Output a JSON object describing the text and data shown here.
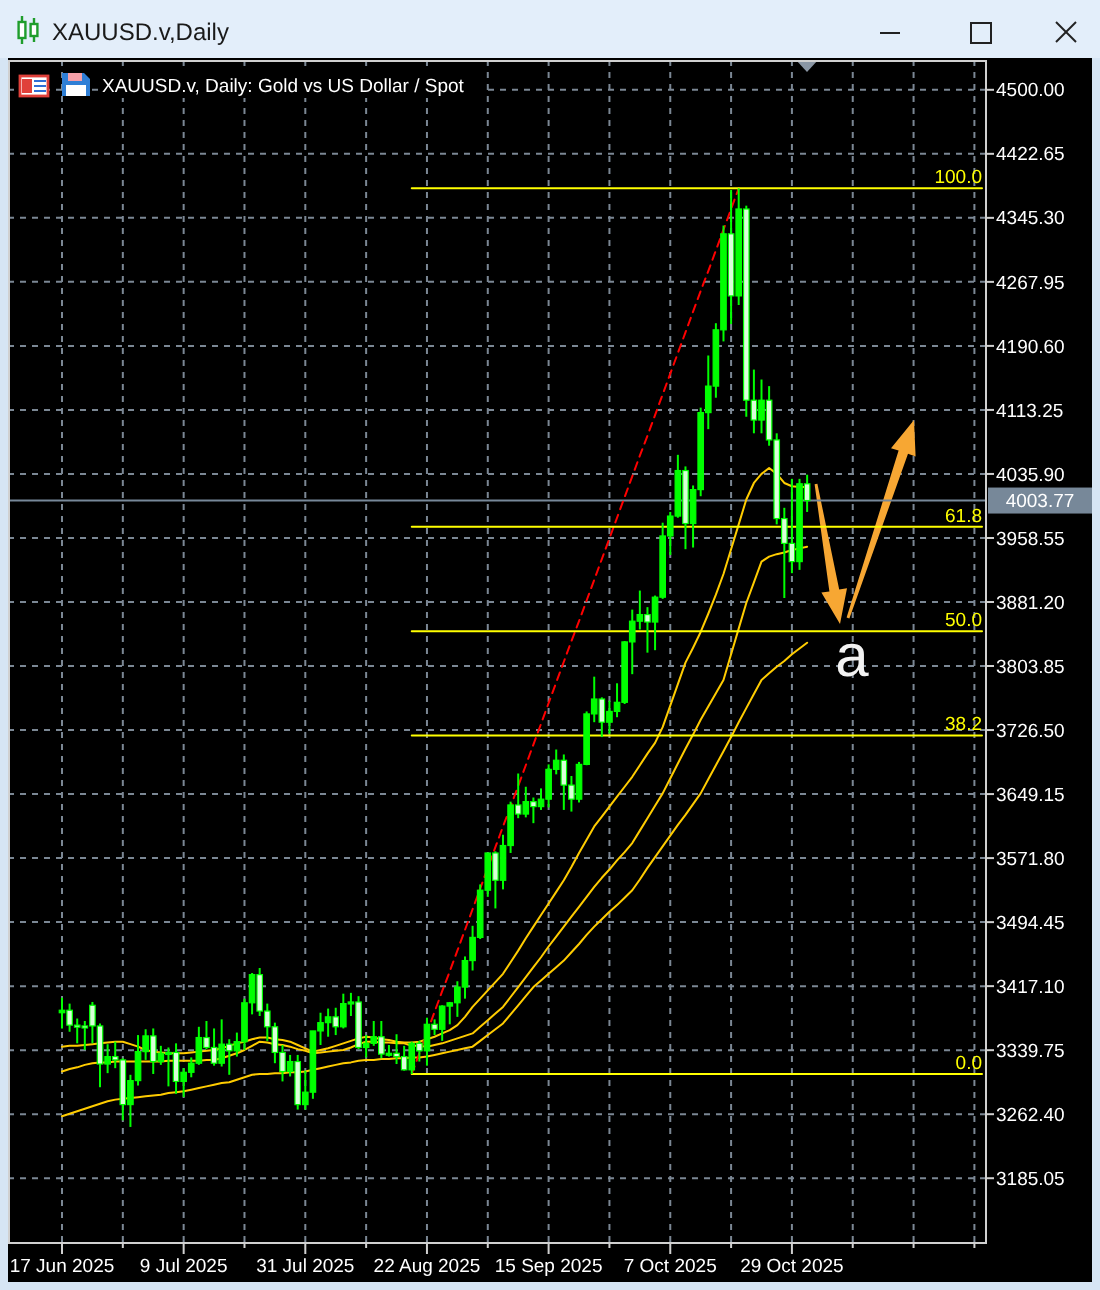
{
  "chart_data": {
    "type": "candlestick",
    "title": "XAUUSD.v,Daily",
    "subtitle": "XAUUSD.v, Daily: Gold vs US Dollar / Spot",
    "color": "#00ff00",
    "categories": [
      "17 Jun 2025",
      null,
      null,
      null,
      null,
      null,
      null,
      null,
      null,
      null,
      null,
      null,
      null,
      null,
      null,
      null,
      "9 Jul 2025",
      null,
      null,
      null,
      null,
      null,
      null,
      null,
      null,
      null,
      null,
      null,
      null,
      null,
      null,
      null,
      "31 Jul 2025",
      null,
      null,
      null,
      null,
      null,
      null,
      null,
      null,
      null,
      null,
      null,
      null,
      null,
      null,
      null,
      "22 Aug 2025",
      null,
      null,
      null,
      null,
      null,
      null,
      null,
      null,
      null,
      null,
      null,
      null,
      null,
      null,
      null,
      "15 Sep 2025",
      null,
      null,
      null,
      null,
      null,
      null,
      null,
      null,
      null,
      null,
      null,
      null,
      null,
      null,
      null,
      "7 Oct 2025",
      null,
      null,
      null,
      null,
      null,
      null,
      null,
      null,
      null,
      null,
      null,
      null,
      null,
      null,
      null,
      "29 Oct 2025",
      null,
      null,
      null,
      null,
      null,
      null,
      null,
      null,
      null,
      null,
      null,
      null,
      null,
      null,
      null,
      null,
      null,
      null,
      null,
      null,
      null,
      null,
      null,
      null,
      null
    ],
    "ohlc": [
      [
        3385,
        3403,
        3366,
        3388
      ],
      [
        3388,
        3396,
        3362,
        3370
      ],
      [
        3370,
        3378,
        3348,
        3369
      ],
      [
        3369,
        3375,
        3340,
        3368
      ],
      [
        3394,
        3398,
        3348,
        3369
      ],
      [
        3369,
        3372,
        3295,
        3323
      ],
      [
        3323,
        3347,
        3312,
        3332
      ],
      [
        3332,
        3350,
        3318,
        3328
      ],
      [
        3328,
        3330,
        3255,
        3274
      ],
      [
        3274,
        3310,
        3247,
        3303
      ],
      [
        3303,
        3358,
        3297,
        3338
      ],
      [
        3338,
        3365,
        3328,
        3357
      ],
      [
        3357,
        3366,
        3311,
        3326
      ],
      [
        3326,
        3345,
        3322,
        3336
      ],
      [
        3336,
        3343,
        3296,
        3337
      ],
      [
        3337,
        3348,
        3287,
        3302
      ],
      [
        3302,
        3318,
        3283,
        3313
      ],
      [
        3313,
        3331,
        3307,
        3324
      ],
      [
        3324,
        3368,
        3322,
        3355
      ],
      [
        3355,
        3375,
        3341,
        3343
      ],
      [
        3343,
        3366,
        3321,
        3324
      ],
      [
        3324,
        3377,
        3320,
        3347
      ],
      [
        3347,
        3353,
        3310,
        3339
      ],
      [
        3339,
        3361,
        3332,
        3350
      ],
      [
        3350,
        3402,
        3340,
        3397
      ],
      [
        3397,
        3433,
        3383,
        3431
      ],
      [
        3431,
        3439,
        3381,
        3387
      ],
      [
        3387,
        3396,
        3351,
        3368
      ],
      [
        3368,
        3373,
        3324,
        3337
      ],
      [
        3337,
        3346,
        3302,
        3314
      ],
      [
        3314,
        3334,
        3308,
        3326
      ],
      [
        3326,
        3334,
        3268,
        3274
      ],
      [
        3274,
        3315,
        3268,
        3289
      ],
      [
        3289,
        3363,
        3281,
        3363
      ],
      [
        3363,
        3385,
        3346,
        3373
      ],
      [
        3373,
        3390,
        3356,
        3380
      ],
      [
        3380,
        3391,
        3358,
        3368
      ],
      [
        3368,
        3408,
        3366,
        3396
      ],
      [
        3396,
        3409,
        3381,
        3398
      ],
      [
        3398,
        3405,
        3341,
        3343
      ],
      [
        3343,
        3358,
        3331,
        3348
      ],
      [
        3348,
        3375,
        3345,
        3356
      ],
      [
        3356,
        3375,
        3330,
        3335
      ],
      [
        3335,
        3346,
        3332,
        3336
      ],
      [
        3336,
        3359,
        3323,
        3332
      ],
      [
        3332,
        3345,
        3315,
        3316
      ],
      [
        3316,
        3350,
        3311,
        3348
      ],
      [
        3348,
        3351,
        3326,
        3339
      ],
      [
        3339,
        3379,
        3321,
        3371
      ],
      [
        3371,
        3377,
        3358,
        3365
      ],
      [
        3365,
        3394,
        3351,
        3393
      ],
      [
        3393,
        3398,
        3371,
        3397
      ],
      [
        3397,
        3423,
        3380,
        3416
      ],
      [
        3416,
        3453,
        3402,
        3448
      ],
      [
        3448,
        3490,
        3436,
        3476
      ],
      [
        3476,
        3540,
        3474,
        3533
      ],
      [
        3533,
        3578,
        3525,
        3578
      ],
      [
        3578,
        3580,
        3511,
        3545
      ],
      [
        3545,
        3600,
        3534,
        3587
      ],
      [
        3587,
        3640,
        3578,
        3636
      ],
      [
        3636,
        3674,
        3620,
        3625
      ],
      [
        3625,
        3658,
        3621,
        3640
      ],
      [
        3640,
        3645,
        3614,
        3634
      ],
      [
        3634,
        3656,
        3630,
        3643
      ],
      [
        3643,
        3685,
        3633,
        3679
      ],
      [
        3679,
        3703,
        3673,
        3690
      ],
      [
        3690,
        3697,
        3630,
        3660
      ],
      [
        3660,
        3671,
        3628,
        3643
      ],
      [
        3643,
        3688,
        3639,
        3685
      ],
      [
        3685,
        3749,
        3684,
        3746
      ],
      [
        3746,
        3791,
        3736,
        3764
      ],
      [
        3764,
        3766,
        3718,
        3736
      ],
      [
        3736,
        3762,
        3722,
        3749
      ],
      [
        3749,
        3783,
        3742,
        3760
      ],
      [
        3760,
        3834,
        3758,
        3833
      ],
      [
        3833,
        3872,
        3794,
        3858
      ],
      [
        3858,
        3895,
        3848,
        3866
      ],
      [
        3866,
        3875,
        3820,
        3857
      ],
      [
        3857,
        3889,
        3823,
        3887
      ],
      [
        3887,
        3977,
        3885,
        3961
      ],
      [
        3961,
        3990,
        3938,
        3985
      ],
      [
        3985,
        4059,
        3983,
        4040
      ],
      [
        4040,
        4045,
        3945,
        3976
      ],
      [
        3976,
        4022,
        3947,
        4017
      ],
      [
        4017,
        4116,
        4009,
        4110
      ],
      [
        4110,
        4179,
        4090,
        4142
      ],
      [
        4142,
        4218,
        4128,
        4210
      ],
      [
        4210,
        4336,
        4196,
        4326
      ],
      [
        4326,
        4379,
        4217,
        4251
      ],
      [
        4251,
        4381,
        4240,
        4356
      ],
      [
        4356,
        4360,
        4105,
        4125
      ],
      [
        4125,
        4162,
        4085,
        4101
      ],
      [
        4101,
        4150,
        4085,
        4125
      ],
      [
        4125,
        4142,
        4070,
        4077
      ],
      [
        4077,
        4085,
        3975,
        3982
      ],
      [
        3982,
        3995,
        3886,
        3952
      ],
      [
        3952,
        4030,
        3916,
        3930
      ],
      [
        3930,
        4030,
        3920,
        4024
      ],
      [
        4024,
        4035,
        3990,
        4003.77
      ],
      null,
      null,
      null,
      null,
      null,
      null,
      null,
      null,
      null,
      null,
      null,
      null,
      null,
      null,
      null,
      null,
      null,
      null,
      null,
      null,
      null,
      null,
      null
    ],
    "series": [
      {
        "type": "line",
        "color": "#ffcc00",
        "values": [
          3344,
          3345,
          3345,
          3346,
          3347,
          3348,
          3349,
          3350,
          3350,
          3347,
          3344,
          3340,
          3338,
          3337,
          3336,
          3336,
          3336,
          3337,
          3338,
          3339,
          3340,
          3342,
          3345,
          3348,
          3350,
          3353,
          3355,
          3355,
          3353,
          3352,
          3350,
          3346,
          3342,
          3338,
          3340,
          3342,
          3345,
          3348,
          3351,
          3354,
          3356,
          3355,
          3353,
          3352,
          3350,
          3349,
          3349,
          3350,
          3353,
          3356,
          3360,
          3364,
          3370,
          3380,
          3392,
          3402,
          3412,
          3422,
          3432,
          3446,
          3460,
          3475,
          3489,
          3503,
          3517,
          3531,
          3545,
          3561,
          3578,
          3594,
          3610,
          3622,
          3634,
          3646,
          3658,
          3670,
          3684,
          3698,
          3711,
          3730,
          3756,
          3782,
          3808,
          3826,
          3845,
          3867,
          3890,
          3915,
          3945,
          3975,
          4005,
          4025,
          4036,
          4043,
          4036,
          4025,
          4021,
          4020,
          4020,
          null,
          null,
          null,
          null,
          null,
          null,
          null,
          null,
          null,
          null,
          null,
          null,
          null,
          null,
          null,
          null,
          null,
          null,
          null,
          null,
          null,
          null,
          null
        ]
      },
      {
        "type": "line",
        "color": "#ffcc00",
        "values": [
          3314,
          3317,
          3319,
          3322,
          3324,
          3325,
          3325,
          3326,
          3326,
          3326,
          3326,
          3326,
          3326,
          3326,
          3327,
          3327,
          3327,
          3327,
          3327,
          3328,
          3328,
          3330,
          3333,
          3336,
          3340,
          3345,
          3350,
          3349,
          3347,
          3346,
          3344,
          3341,
          3339,
          3336,
          3337,
          3338,
          3339,
          3340,
          3343,
          3347,
          3350,
          3350,
          3349,
          3349,
          3348,
          3348,
          3345,
          3345,
          3344,
          3346,
          3348,
          3351,
          3354,
          3357,
          3360,
          3368,
          3376,
          3384,
          3392,
          3404,
          3416,
          3428,
          3440,
          3452,
          3465,
          3477,
          3489,
          3501,
          3513,
          3525,
          3537,
          3548,
          3558,
          3569,
          3579,
          3590,
          3605,
          3620,
          3635,
          3650,
          3668,
          3686,
          3704,
          3721,
          3739,
          3755,
          3771,
          3787,
          3818,
          3849,
          3880,
          3905,
          3930,
          3936,
          3939,
          3941,
          3944,
          3946,
          3948,
          null,
          null,
          null,
          null,
          null,
          null,
          null,
          null,
          null,
          null,
          null,
          null,
          null,
          null,
          null,
          null,
          null,
          null,
          null,
          null,
          null,
          null,
          null
        ]
      },
      {
        "type": "line",
        "color": "#ffcc00",
        "values": [
          3260,
          3263,
          3266,
          3269,
          3272,
          3275,
          3278,
          3280,
          3281,
          3282,
          3283,
          3284,
          3285,
          3286,
          3288,
          3289,
          3290,
          3292,
          3294,
          3296,
          3298,
          3300,
          3301,
          3304,
          3307,
          3310,
          3311,
          3311,
          3312,
          3312,
          3313,
          3313,
          3314,
          3316,
          3318,
          3320,
          3322,
          3324,
          3325,
          3327,
          3328,
          3328,
          3329,
          3329,
          3330,
          3330,
          3331,
          3331,
          3332,
          3334,
          3336,
          3338,
          3340,
          3342,
          3344,
          3351,
          3358,
          3365,
          3372,
          3383,
          3394,
          3405,
          3416,
          3424,
          3432,
          3440,
          3448,
          3458,
          3468,
          3479,
          3489,
          3498,
          3507,
          3515,
          3524,
          3533,
          3546,
          3560,
          3573,
          3586,
          3599,
          3612,
          3624,
          3637,
          3650,
          3667,
          3684,
          3701,
          3718,
          3736,
          3753,
          3770,
          3787,
          3795,
          3803,
          3810,
          3818,
          3825,
          3832,
          null,
          null,
          null,
          null,
          null,
          null,
          null,
          null,
          null,
          null,
          null,
          null,
          null,
          null,
          null,
          null,
          null,
          null,
          null,
          null,
          null,
          null,
          null
        ]
      },
      {
        "type": "line",
        "color": "#ff0000",
        "line_style": "dashed",
        "values": [
          null,
          null,
          null,
          null,
          null,
          null,
          null,
          null,
          null,
          null,
          null,
          null,
          null,
          null,
          null,
          null,
          null,
          null,
          null,
          null,
          null,
          null,
          null,
          null,
          null,
          null,
          null,
          null,
          null,
          null,
          null,
          null,
          null,
          null,
          null,
          null,
          null,
          null,
          null,
          null,
          null,
          null,
          null,
          null,
          null,
          null,
          3311,
          3336,
          3361,
          3386,
          3411,
          3435,
          3460,
          3485,
          3510,
          3535,
          3560,
          3585,
          3610,
          3634,
          3659,
          3684,
          3709,
          3734,
          3759,
          3784,
          3809,
          3834,
          3858,
          3883,
          3908,
          3933,
          3958,
          3983,
          4008,
          4033,
          4058,
          4082,
          4107,
          4132,
          4157,
          4182,
          4207,
          4232,
          4257,
          4281,
          4306,
          4331,
          4356,
          4381,
          null,
          null,
          null,
          null,
          null,
          null,
          null,
          null,
          null,
          null,
          null,
          null,
          null,
          null,
          null,
          null,
          null,
          null,
          null,
          null,
          null,
          null,
          null,
          null,
          null,
          null,
          null,
          null,
          null,
          null,
          null,
          null
        ]
      },
      {
        "type": "line",
        "name": "100.0",
        "color": "#ffff00",
        "values": [
          null,
          null,
          null,
          null,
          null,
          null,
          null,
          null,
          null,
          null,
          null,
          null,
          null,
          null,
          null,
          null,
          null,
          null,
          null,
          null,
          null,
          null,
          null,
          null,
          null,
          null,
          null,
          null,
          null,
          null,
          null,
          null,
          null,
          null,
          null,
          null,
          null,
          null,
          null,
          null,
          null,
          null,
          null,
          null,
          null,
          null,
          4381,
          4381,
          4381,
          4381,
          4381,
          4381,
          4381,
          4381,
          4381,
          4381,
          4381,
          4381,
          4381,
          4381,
          4381,
          4381,
          4381,
          4381,
          4381,
          4381,
          4381,
          4381,
          4381,
          4381,
          4381,
          4381,
          4381,
          4381,
          4381,
          4381,
          4381,
          4381,
          4381,
          4381,
          4381,
          4381,
          4381,
          4381,
          4381,
          4381,
          4381,
          4381,
          4381,
          4381,
          4381,
          4381,
          4381,
          4381,
          4381,
          4381,
          4381,
          4381,
          4381,
          4381,
          4381,
          4381,
          4381,
          4381,
          4381,
          4381,
          4381,
          4381,
          4381,
          4381,
          4381,
          4381,
          4381,
          4381,
          4381,
          4381,
          4381,
          4381,
          4381,
          4381,
          4381,
          4381
        ]
      },
      {
        "type": "line",
        "name": "61.8",
        "color": "#ffff00",
        "values": [
          null,
          null,
          null,
          null,
          null,
          null,
          null,
          null,
          null,
          null,
          null,
          null,
          null,
          null,
          null,
          null,
          null,
          null,
          null,
          null,
          null,
          null,
          null,
          null,
          null,
          null,
          null,
          null,
          null,
          null,
          null,
          null,
          null,
          null,
          null,
          null,
          null,
          null,
          null,
          null,
          null,
          null,
          null,
          null,
          null,
          null,
          3972,
          3972,
          3972,
          3972,
          3972,
          3972,
          3972,
          3972,
          3972,
          3972,
          3972,
          3972,
          3972,
          3972,
          3972,
          3972,
          3972,
          3972,
          3972,
          3972,
          3972,
          3972,
          3972,
          3972,
          3972,
          3972,
          3972,
          3972,
          3972,
          3972,
          3972,
          3972,
          3972,
          3972,
          3972,
          3972,
          3972,
          3972,
          3972,
          3972,
          3972,
          3972,
          3972,
          3972,
          3972,
          3972,
          3972,
          3972,
          3972,
          3972,
          3972,
          3972,
          3972,
          3972,
          3972,
          3972,
          3972,
          3972,
          3972,
          3972,
          3972,
          3972,
          3972,
          3972,
          3972,
          3972,
          3972,
          3972,
          3972,
          3972,
          3972,
          3972,
          3972,
          3972,
          3972,
          3972
        ]
      },
      {
        "type": "line",
        "name": "50.0",
        "color": "#ffff00",
        "values": [
          null,
          null,
          null,
          null,
          null,
          null,
          null,
          null,
          null,
          null,
          null,
          null,
          null,
          null,
          null,
          null,
          null,
          null,
          null,
          null,
          null,
          null,
          null,
          null,
          null,
          null,
          null,
          null,
          null,
          null,
          null,
          null,
          null,
          null,
          null,
          null,
          null,
          null,
          null,
          null,
          null,
          null,
          null,
          null,
          null,
          null,
          3846,
          3846,
          3846,
          3846,
          3846,
          3846,
          3846,
          3846,
          3846,
          3846,
          3846,
          3846,
          3846,
          3846,
          3846,
          3846,
          3846,
          3846,
          3846,
          3846,
          3846,
          3846,
          3846,
          3846,
          3846,
          3846,
          3846,
          3846,
          3846,
          3846,
          3846,
          3846,
          3846,
          3846,
          3846,
          3846,
          3846,
          3846,
          3846,
          3846,
          3846,
          3846,
          3846,
          3846,
          3846,
          3846,
          3846,
          3846,
          3846,
          3846,
          3846,
          3846,
          3846,
          3846,
          3846,
          3846,
          3846,
          3846,
          3846,
          3846,
          3846,
          3846,
          3846,
          3846,
          3846,
          3846,
          3846,
          3846,
          3846,
          3846,
          3846,
          3846,
          3846,
          3846,
          3846,
          3846
        ]
      },
      {
        "type": "line",
        "name": "38.2",
        "color": "#ffff00",
        "values": [
          null,
          null,
          null,
          null,
          null,
          null,
          null,
          null,
          null,
          null,
          null,
          null,
          null,
          null,
          null,
          null,
          null,
          null,
          null,
          null,
          null,
          null,
          null,
          null,
          null,
          null,
          null,
          null,
          null,
          null,
          null,
          null,
          null,
          null,
          null,
          null,
          null,
          null,
          null,
          null,
          null,
          null,
          null,
          null,
          null,
          null,
          3720,
          3720,
          3720,
          3720,
          3720,
          3720,
          3720,
          3720,
          3720,
          3720,
          3720,
          3720,
          3720,
          3720,
          3720,
          3720,
          3720,
          3720,
          3720,
          3720,
          3720,
          3720,
          3720,
          3720,
          3720,
          3720,
          3720,
          3720,
          3720,
          3720,
          3720,
          3720,
          3720,
          3720,
          3720,
          3720,
          3720,
          3720,
          3720,
          3720,
          3720,
          3720,
          3720,
          3720,
          3720,
          3720,
          3720,
          3720,
          3720,
          3720,
          3720,
          3720,
          3720,
          3720,
          3720,
          3720,
          3720,
          3720,
          3720,
          3720,
          3720,
          3720,
          3720,
          3720,
          3720,
          3720,
          3720,
          3720,
          3720,
          3720,
          3720,
          3720,
          3720,
          3720,
          3720,
          3720
        ]
      },
      {
        "type": "line",
        "name": "0.0",
        "color": "#ffff00",
        "values": [
          null,
          null,
          null,
          null,
          null,
          null,
          null,
          null,
          null,
          null,
          null,
          null,
          null,
          null,
          null,
          null,
          null,
          null,
          null,
          null,
          null,
          null,
          null,
          null,
          null,
          null,
          null,
          null,
          null,
          null,
          null,
          null,
          null,
          null,
          null,
          null,
          null,
          null,
          null,
          null,
          null,
          null,
          null,
          null,
          null,
          null,
          3311,
          3311,
          3311,
          3311,
          3311,
          3311,
          3311,
          3311,
          3311,
          3311,
          3311,
          3311,
          3311,
          3311,
          3311,
          3311,
          3311,
          3311,
          3311,
          3311,
          3311,
          3311,
          3311,
          3311,
          3311,
          3311,
          3311,
          3311,
          3311,
          3311,
          3311,
          3311,
          3311,
          3311,
          3311,
          3311,
          3311,
          3311,
          3311,
          3311,
          3311,
          3311,
          3311,
          3311,
          3311,
          3311,
          3311,
          3311,
          3311,
          3311,
          3311,
          3311,
          3311,
          3311,
          3311,
          3311,
          3311,
          3311,
          3311,
          3311,
          3311,
          3311,
          3311,
          3311,
          3311,
          3311,
          3311,
          3311,
          3311,
          3311,
          3311,
          3311,
          3311,
          3311,
          3311,
          3311
        ]
      }
    ],
    "ylim": [
      3108,
      4536
    ],
    "yticks": [
      {
        "value": 4500,
        "label": "4500.00"
      },
      4422.65,
      {
        "value": 4345.3,
        "label": "4345.30"
      },
      4267.95,
      {
        "value": 4190.6,
        "label": "4190.60"
      },
      4113.25,
      {
        "value": 4035.9,
        "label": "4035.90"
      },
      3958.55,
      {
        "value": 3881.2,
        "label": "3881.20"
      },
      3803.85,
      {
        "value": 3726.5,
        "label": "3726.50"
      },
      3649.15,
      {
        "value": 3571.8,
        "label": "3571.80"
      },
      3494.45,
      {
        "value": 3417.1,
        "label": "3417.10"
      },
      3339.75,
      {
        "value": 3262.4,
        "label": "3262.40"
      },
      3185.05
    ],
    "grid": true,
    "ref_lines": [
      {
        "axis": "y",
        "value": 4003.77,
        "label": "4003.77",
        "color": "#778899"
      }
    ],
    "annotations": [
      {
        "text": "a",
        "y": 3850
      }
    ]
  }
}
